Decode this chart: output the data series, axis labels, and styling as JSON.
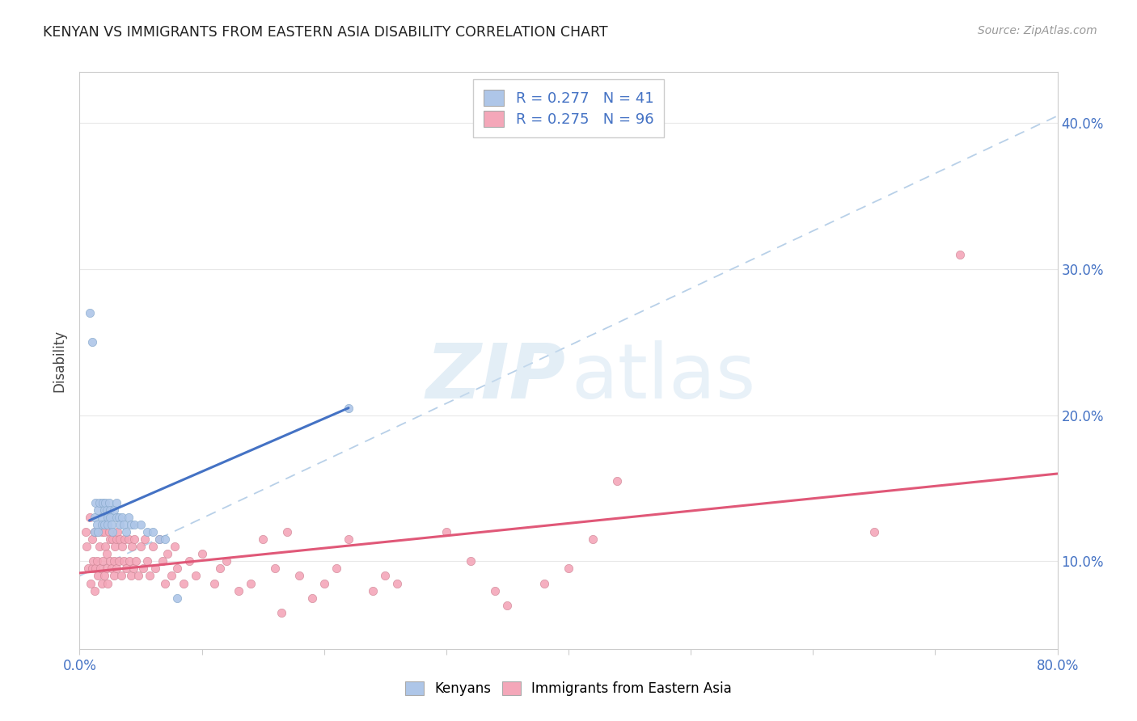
{
  "title": "KENYAN VS IMMIGRANTS FROM EASTERN ASIA DISABILITY CORRELATION CHART",
  "source": "Source: ZipAtlas.com",
  "ylabel": "Disability",
  "yticks_labels": [
    "10.0%",
    "20.0%",
    "30.0%",
    "40.0%"
  ],
  "ytick_values": [
    0.1,
    0.2,
    0.3,
    0.4
  ],
  "xmin": 0.0,
  "xmax": 0.8,
  "ymin": 0.04,
  "ymax": 0.435,
  "legend1_r": "0.277",
  "legend1_n": "41",
  "legend2_r": "0.275",
  "legend2_n": "96",
  "color_kenyan": "#aec6e8",
  "color_eastern_asia": "#f4a7b9",
  "color_kenyan_line": "#4472c4",
  "color_eastern_asia_line": "#e05878",
  "color_dashed_line": "#b8d0e8",
  "kenyan_x": [
    0.008,
    0.01,
    0.012,
    0.012,
    0.013,
    0.014,
    0.015,
    0.015,
    0.016,
    0.018,
    0.018,
    0.019,
    0.02,
    0.02,
    0.021,
    0.022,
    0.023,
    0.023,
    0.024,
    0.025,
    0.025,
    0.026,
    0.027,
    0.028,
    0.03,
    0.03,
    0.032,
    0.033,
    0.035,
    0.036,
    0.038,
    0.04,
    0.042,
    0.045,
    0.05,
    0.055,
    0.06,
    0.065,
    0.07,
    0.08,
    0.22
  ],
  "kenyan_y": [
    0.27,
    0.25,
    0.13,
    0.12,
    0.14,
    0.125,
    0.135,
    0.12,
    0.14,
    0.13,
    0.125,
    0.14,
    0.135,
    0.125,
    0.14,
    0.135,
    0.13,
    0.125,
    0.14,
    0.135,
    0.13,
    0.125,
    0.12,
    0.135,
    0.14,
    0.13,
    0.13,
    0.125,
    0.13,
    0.125,
    0.12,
    0.13,
    0.125,
    0.125,
    0.125,
    0.12,
    0.12,
    0.115,
    0.115,
    0.075,
    0.205
  ],
  "eastern_x": [
    0.005,
    0.006,
    0.007,
    0.008,
    0.009,
    0.01,
    0.01,
    0.011,
    0.012,
    0.012,
    0.013,
    0.014,
    0.015,
    0.015,
    0.016,
    0.017,
    0.018,
    0.018,
    0.019,
    0.02,
    0.02,
    0.021,
    0.022,
    0.022,
    0.023,
    0.024,
    0.025,
    0.025,
    0.026,
    0.027,
    0.028,
    0.028,
    0.029,
    0.03,
    0.03,
    0.031,
    0.032,
    0.033,
    0.034,
    0.035,
    0.036,
    0.037,
    0.038,
    0.04,
    0.041,
    0.042,
    0.043,
    0.044,
    0.045,
    0.046,
    0.048,
    0.05,
    0.052,
    0.053,
    0.055,
    0.057,
    0.06,
    0.062,
    0.065,
    0.068,
    0.07,
    0.072,
    0.075,
    0.078,
    0.08,
    0.085,
    0.09,
    0.095,
    0.1,
    0.11,
    0.115,
    0.12,
    0.13,
    0.14,
    0.15,
    0.16,
    0.165,
    0.17,
    0.18,
    0.19,
    0.2,
    0.21,
    0.22,
    0.24,
    0.25,
    0.26,
    0.3,
    0.32,
    0.34,
    0.35,
    0.38,
    0.4,
    0.42,
    0.44,
    0.65,
    0.72
  ],
  "eastern_y": [
    0.12,
    0.11,
    0.095,
    0.13,
    0.085,
    0.115,
    0.095,
    0.1,
    0.12,
    0.08,
    0.095,
    0.1,
    0.12,
    0.09,
    0.11,
    0.095,
    0.12,
    0.085,
    0.1,
    0.12,
    0.09,
    0.11,
    0.095,
    0.105,
    0.085,
    0.12,
    0.1,
    0.115,
    0.095,
    0.115,
    0.1,
    0.09,
    0.11,
    0.115,
    0.095,
    0.12,
    0.1,
    0.115,
    0.09,
    0.11,
    0.1,
    0.115,
    0.095,
    0.115,
    0.1,
    0.09,
    0.11,
    0.095,
    0.115,
    0.1,
    0.09,
    0.11,
    0.095,
    0.115,
    0.1,
    0.09,
    0.11,
    0.095,
    0.115,
    0.1,
    0.085,
    0.105,
    0.09,
    0.11,
    0.095,
    0.085,
    0.1,
    0.09,
    0.105,
    0.085,
    0.095,
    0.1,
    0.08,
    0.085,
    0.115,
    0.095,
    0.065,
    0.12,
    0.09,
    0.075,
    0.085,
    0.095,
    0.115,
    0.08,
    0.09,
    0.085,
    0.12,
    0.1,
    0.08,
    0.07,
    0.085,
    0.095,
    0.115,
    0.155,
    0.12,
    0.31
  ],
  "kenyan_line_x": [
    0.008,
    0.22
  ],
  "kenyan_line_y": [
    0.128,
    0.205
  ],
  "eastern_line_x": [
    0.0,
    0.8
  ],
  "eastern_line_y": [
    0.092,
    0.16
  ],
  "dash_line_x": [
    0.0,
    0.8
  ],
  "dash_line_y": [
    0.09,
    0.405
  ],
  "legend_labels": [
    "Kenyans",
    "Immigrants from Eastern Asia"
  ]
}
